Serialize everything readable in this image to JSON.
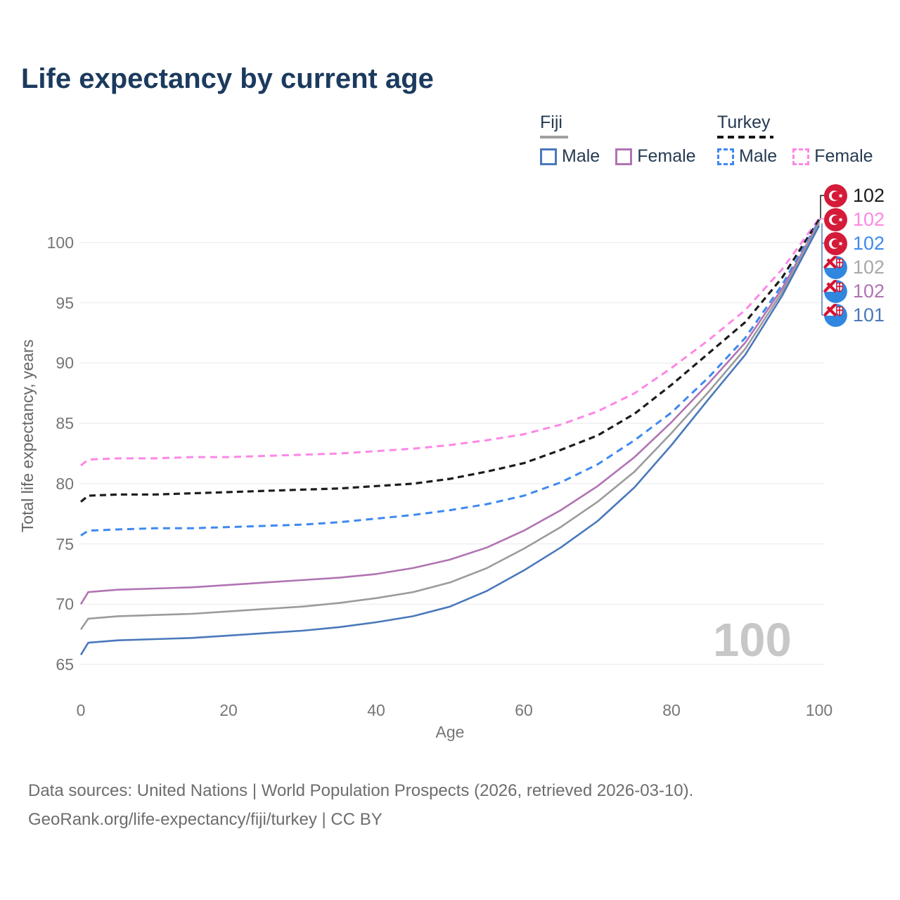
{
  "title": "Life expectancy by current age",
  "legend": {
    "groups": [
      {
        "name": "Fiji",
        "line_style": "solid",
        "underline_color": "#a0a0a0",
        "items": [
          {
            "label": "Male",
            "color": "#4a78bb",
            "dashed": false
          },
          {
            "label": "Female",
            "color": "#b173b3",
            "dashed": false
          }
        ]
      },
      {
        "name": "Turkey",
        "line_style": "dashed",
        "underline_color": "#161616",
        "items": [
          {
            "label": "Male",
            "color": "#3d89f0",
            "dashed": true
          },
          {
            "label": "Female",
            "color": "#fd87e6",
            "dashed": true
          }
        ]
      }
    ]
  },
  "chart_data": {
    "type": "line",
    "title": "Life expectancy by current age",
    "xlabel": "Age",
    "ylabel": "Total life expectancy, years",
    "xlim": [
      0,
      100
    ],
    "ylim": [
      63.5,
      103.5
    ],
    "xticks": [
      0,
      20,
      40,
      60,
      80,
      100
    ],
    "yticks": [
      65,
      70,
      75,
      80,
      85,
      90,
      95,
      100
    ],
    "grid": "horizontal",
    "legend_position": "top-right",
    "x": [
      0,
      1,
      5,
      10,
      15,
      20,
      25,
      30,
      35,
      40,
      45,
      50,
      55,
      60,
      65,
      70,
      75,
      80,
      85,
      90,
      95,
      100
    ],
    "series": [
      {
        "name": "Turkey Female",
        "country": "Turkey",
        "sex": "female",
        "color": "#fd87e6",
        "dashed": true,
        "dasharray": "10 7",
        "width": 3,
        "values": [
          81.5,
          82.0,
          82.1,
          82.1,
          82.2,
          82.2,
          82.3,
          82.4,
          82.5,
          82.7,
          82.9,
          83.2,
          83.6,
          84.1,
          84.9,
          86.0,
          87.5,
          89.6,
          91.9,
          94.4,
          97.8,
          102.0
        ]
      },
      {
        "name": "Turkey Both sexes",
        "country": "Turkey",
        "sex": "both",
        "color": "#1c1c1c",
        "dashed": true,
        "dasharray": "9 6",
        "width": 3.2,
        "values": [
          78.5,
          79.0,
          79.1,
          79.1,
          79.2,
          79.3,
          79.4,
          79.5,
          79.6,
          79.8,
          80.0,
          80.4,
          81.0,
          81.7,
          82.8,
          84.0,
          85.8,
          88.2,
          90.8,
          93.4,
          97.1,
          101.9
        ]
      },
      {
        "name": "Turkey Male",
        "country": "Turkey",
        "sex": "male",
        "color": "#3d89f0",
        "dashed": true,
        "dasharray": "10 7",
        "width": 3,
        "values": [
          75.7,
          76.1,
          76.2,
          76.3,
          76.3,
          76.4,
          76.5,
          76.6,
          76.8,
          77.1,
          77.4,
          77.8,
          78.3,
          79.0,
          80.1,
          81.6,
          83.6,
          85.9,
          88.8,
          92.1,
          96.5,
          101.8
        ]
      },
      {
        "name": "Fiji Female",
        "country": "Fiji",
        "sex": "female",
        "color": "#b173b3",
        "dashed": false,
        "dasharray": "",
        "width": 2.6,
        "values": [
          70.0,
          71.0,
          71.2,
          71.3,
          71.4,
          71.6,
          71.8,
          72.0,
          72.2,
          72.5,
          73.0,
          73.7,
          74.7,
          76.1,
          77.8,
          79.8,
          82.2,
          85.1,
          88.3,
          91.7,
          96.2,
          101.7
        ]
      },
      {
        "name": "Fiji Both sexes",
        "country": "Fiji",
        "sex": "both",
        "color": "#9b9b9b",
        "dashed": false,
        "dasharray": "",
        "width": 2.6,
        "values": [
          67.9,
          68.8,
          69.0,
          69.1,
          69.2,
          69.4,
          69.6,
          69.8,
          70.1,
          70.5,
          71.0,
          71.8,
          73.0,
          74.6,
          76.4,
          78.5,
          81.0,
          84.2,
          87.6,
          91.2,
          95.9,
          101.6
        ]
      },
      {
        "name": "Fiji Male",
        "country": "Fiji",
        "sex": "male",
        "color": "#4a78bb",
        "dashed": false,
        "dasharray": "",
        "width": 2.6,
        "values": [
          65.8,
          66.8,
          67.0,
          67.1,
          67.2,
          67.4,
          67.6,
          67.8,
          68.1,
          68.5,
          69.0,
          69.8,
          71.1,
          72.8,
          74.7,
          76.9,
          79.7,
          83.2,
          87.0,
          90.7,
          95.6,
          101.4
        ]
      }
    ]
  },
  "end_labels": [
    {
      "flag": "turkey",
      "value": "102",
      "color": "#1c1c1c"
    },
    {
      "flag": "turkey",
      "value": "102",
      "color": "#fd87e6"
    },
    {
      "flag": "turkey",
      "value": "102",
      "color": "#3d89f0"
    },
    {
      "flag": "fiji",
      "value": "102",
      "color": "#a8a8a8"
    },
    {
      "flag": "fiji",
      "value": "102",
      "color": "#b173b3"
    },
    {
      "flag": "fiji",
      "value": "101",
      "color": "#4a78bb"
    }
  ],
  "age_indicator": "100",
  "colors": {
    "title": "#1b3a5e",
    "grid": "#e9e9e9",
    "tick_text": "#767676",
    "watermark": "#c7c7c7",
    "turkey_flag_red": "#d41b39",
    "fiji_flag_blue": "#2f87e0"
  },
  "footer": {
    "line1": "Data sources: United Nations | World Population Prospects (2026, retrieved 2026-03-10).",
    "line2": "GeoRank.org/life-expectancy/fiji/turkey | CC BY"
  }
}
